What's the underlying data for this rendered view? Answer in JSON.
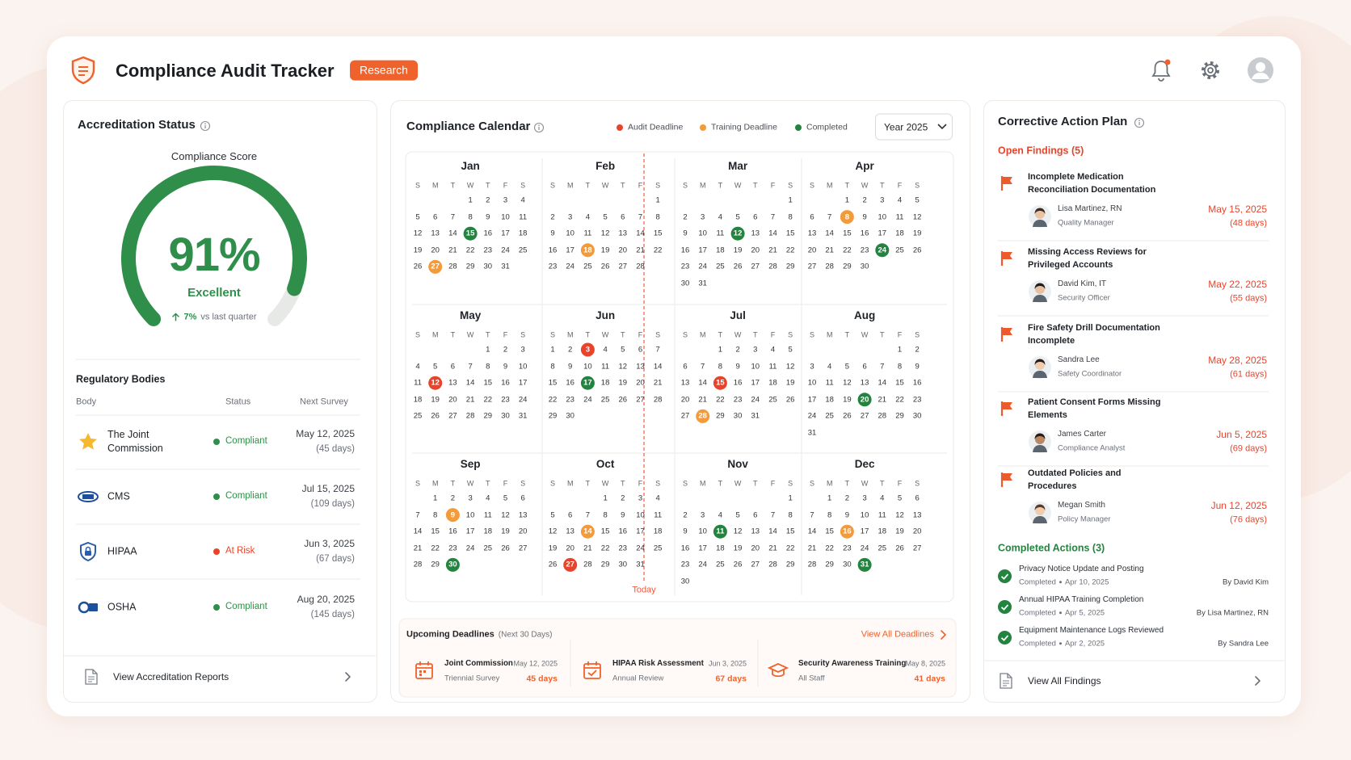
{
  "header": {
    "title": "Compliance Audit Tracker",
    "badge": "Research"
  },
  "accreditation": {
    "title": "Accreditation Status",
    "score_title": "Compliance Score",
    "score": 91,
    "score_label": "91%",
    "range": [
      0,
      100
    ],
    "color": "#2f8f4a",
    "rating": "Excellent",
    "change": "7%",
    "change_note": "vs last quarter",
    "bodies_title": "Regulatory Bodies",
    "columns": [
      "Body",
      "Status",
      "Next Survey"
    ],
    "rows": [
      {
        "name": "The Joint Commission",
        "status": "Compliant",
        "color": "#2f8f4a",
        "date": "May 12, 2025",
        "days": "(45 days)"
      },
      {
        "name": "CMS",
        "status": "Compliant",
        "color": "#2f8f4a",
        "date": "Jul 15, 2025",
        "days": "(109 days)"
      },
      {
        "name": "HIPAA",
        "status": "At Risk",
        "color": "#e8442b",
        "date": "Jun 3, 2025",
        "days": "(67 days)"
      },
      {
        "name": "OSHA",
        "status": "Compliant",
        "color": "#2f8f4a",
        "date": "Aug 20, 2025",
        "days": "(145 days)"
      }
    ],
    "footer": "View Accreditation Reports"
  },
  "calendar": {
    "title": "Compliance Calendar",
    "legend": [
      {
        "label": "Audit Deadline",
        "color": "#e8442b"
      },
      {
        "label": "Training Deadline",
        "color": "#f39a3b"
      },
      {
        "label": "Completed",
        "color": "#23843f"
      }
    ],
    "year_select": "Year 2025",
    "today": "Today",
    "weekdays": [
      "S",
      "M",
      "T",
      "W",
      "T",
      "F",
      "S"
    ],
    "months": [
      {
        "name": "Jan",
        "weeks": [
          [
            null,
            null,
            null,
            1,
            2,
            3,
            4
          ],
          [
            5,
            6,
            7,
            8,
            9,
            10,
            11
          ],
          [
            12,
            13,
            14,
            15,
            16,
            17,
            18
          ],
          [
            19,
            20,
            21,
            22,
            23,
            24,
            25
          ],
          [
            26,
            27,
            28,
            29,
            30,
            31
          ]
        ],
        "marks": [
          {
            "day": 15,
            "kind": "Completed"
          },
          {
            "day": 27,
            "kind": "Training Deadline"
          }
        ]
      },
      {
        "name": "Feb",
        "weeks": [
          [
            null,
            null,
            null,
            null,
            null,
            null,
            1
          ],
          [
            2,
            3,
            4,
            5,
            6,
            7,
            8
          ],
          [
            9,
            10,
            11,
            12,
            13,
            14,
            15
          ],
          [
            16,
            17,
            18,
            19,
            20,
            21,
            22
          ],
          [
            23,
            24,
            25,
            26,
            27,
            28
          ]
        ],
        "marks": [
          {
            "day": 18,
            "kind": "Training Deadline"
          }
        ]
      },
      {
        "name": "Mar",
        "weeks": [
          [
            null,
            null,
            null,
            null,
            null,
            null,
            1
          ],
          [
            2,
            3,
            4,
            5,
            6,
            7,
            8
          ],
          [
            9,
            10,
            11,
            12,
            13,
            14,
            15
          ],
          [
            16,
            17,
            18,
            19,
            20,
            21,
            22
          ],
          [
            23,
            24,
            25,
            26,
            27,
            28,
            29
          ],
          [
            30,
            31
          ]
        ],
        "marks": [
          {
            "day": 12,
            "kind": "Completed"
          }
        ]
      },
      {
        "name": "Apr",
        "weeks": [
          [
            null,
            null,
            1,
            2,
            3,
            4,
            5
          ],
          [
            6,
            7,
            8,
            9,
            10,
            11,
            12
          ],
          [
            13,
            14,
            15,
            16,
            17,
            18,
            19
          ],
          [
            20,
            21,
            22,
            23,
            24,
            25,
            26
          ],
          [
            27,
            28,
            29,
            30
          ]
        ],
        "marks": [
          {
            "day": 8,
            "kind": "Training Deadline"
          },
          {
            "day": 24,
            "kind": "Completed"
          }
        ]
      },
      {
        "name": "May",
        "weeks": [
          [
            null,
            null,
            null,
            null,
            1,
            2,
            3
          ],
          [
            4,
            5,
            6,
            7,
            8,
            9,
            10
          ],
          [
            11,
            12,
            13,
            14,
            15,
            16,
            17
          ],
          [
            18,
            19,
            20,
            21,
            22,
            23,
            24
          ],
          [
            25,
            26,
            27,
            28,
            29,
            30,
            31
          ]
        ],
        "marks": [
          {
            "day": 12,
            "kind": "Audit Deadline"
          }
        ]
      },
      {
        "name": "Jun",
        "weeks": [
          [
            1,
            2,
            3,
            4,
            5,
            6,
            7
          ],
          [
            8,
            9,
            10,
            11,
            12,
            13,
            14
          ],
          [
            15,
            16,
            17,
            18,
            19,
            20,
            21
          ],
          [
            22,
            23,
            24,
            25,
            26,
            27,
            28
          ],
          [
            29,
            30
          ]
        ],
        "marks": [
          {
            "day": 3,
            "kind": "Audit Deadline"
          },
          {
            "day": 17,
            "kind": "Completed"
          }
        ]
      },
      {
        "name": "Jul",
        "weeks": [
          [
            null,
            null,
            1,
            2,
            3,
            4,
            5
          ],
          [
            6,
            7,
            8,
            9,
            10,
            11,
            12
          ],
          [
            13,
            14,
            15,
            16,
            17,
            18,
            19
          ],
          [
            20,
            21,
            22,
            23,
            24,
            25,
            26
          ],
          [
            27,
            28,
            29,
            30,
            31
          ]
        ],
        "marks": [
          {
            "day": 15,
            "kind": "Audit Deadline"
          },
          {
            "day": 28,
            "kind": "Training Deadline"
          }
        ]
      },
      {
        "name": "Aug",
        "weeks": [
          [
            null,
            null,
            null,
            null,
            null,
            1,
            2
          ],
          [
            3,
            4,
            5,
            6,
            7,
            8,
            9
          ],
          [
            10,
            11,
            12,
            13,
            14,
            15,
            16
          ],
          [
            17,
            18,
            19,
            20,
            21,
            22,
            23
          ],
          [
            24,
            25,
            26,
            27,
            28,
            29,
            30
          ],
          [
            31
          ]
        ],
        "marks": [
          {
            "day": 20,
            "kind": "Completed"
          }
        ]
      },
      {
        "name": "Sep",
        "weeks": [
          [
            null,
            1,
            2,
            3,
            4,
            5,
            6
          ],
          [
            7,
            8,
            9,
            10,
            11,
            12,
            13
          ],
          [
            14,
            15,
            16,
            17,
            18,
            19,
            20
          ],
          [
            21,
            22,
            23,
            24,
            25,
            26,
            27
          ],
          [
            28,
            29,
            30
          ]
        ],
        "marks": [
          {
            "day": 9,
            "kind": "Training Deadline"
          },
          {
            "day": 30,
            "kind": "Completed"
          }
        ]
      },
      {
        "name": "Oct",
        "weeks": [
          [
            null,
            null,
            null,
            1,
            2,
            3,
            4
          ],
          [
            5,
            6,
            7,
            8,
            9,
            10,
            11
          ],
          [
            12,
            13,
            14,
            15,
            16,
            17,
            18
          ],
          [
            19,
            20,
            21,
            22,
            23,
            24,
            25
          ],
          [
            26,
            27,
            28,
            29,
            30,
            31
          ]
        ],
        "marks": [
          {
            "day": 14,
            "kind": "Training Deadline"
          },
          {
            "day": 27,
            "kind": "Audit Deadline"
          }
        ]
      },
      {
        "name": "Nov",
        "weeks": [
          [
            null,
            null,
            null,
            null,
            null,
            null,
            1
          ],
          [
            2,
            3,
            4,
            5,
            6,
            7,
            8
          ],
          [
            9,
            10,
            11,
            12,
            13,
            14,
            15
          ],
          [
            16,
            17,
            18,
            19,
            20,
            21,
            22
          ],
          [
            23,
            24,
            25,
            26,
            27,
            28,
            29
          ],
          [
            30
          ]
        ],
        "marks": [
          {
            "day": 11,
            "kind": "Completed"
          }
        ]
      },
      {
        "name": "Dec",
        "weeks": [
          [
            null,
            1,
            2,
            3,
            4,
            5,
            6
          ],
          [
            7,
            8,
            9,
            10,
            11,
            12,
            13
          ],
          [
            14,
            15,
            16,
            17,
            18,
            19,
            20
          ],
          [
            21,
            22,
            23,
            24,
            25,
            26,
            27
          ],
          [
            28,
            29,
            30,
            31
          ]
        ],
        "marks": [
          {
            "day": 16,
            "kind": "Training Deadline"
          },
          {
            "day": 31,
            "kind": "Completed"
          }
        ]
      }
    ]
  },
  "deadlines": {
    "title": "Upcoming Deadlines",
    "note": "(Next 30 Days)",
    "link": "View All Deadlines",
    "items": [
      {
        "title": "Joint Commission",
        "sub": "Triennial Survey",
        "date": "May 12, 2025",
        "days": "45 days"
      },
      {
        "title": "HIPAA Risk Assessment",
        "sub": "Annual Review",
        "date": "Jun 3, 2025",
        "days": "67 days"
      },
      {
        "title": "Security Awareness Training",
        "sub": "All Staff",
        "date": "May 8, 2025",
        "days": "41 days"
      }
    ]
  },
  "corrective": {
    "title": "Corrective Action Plan",
    "open_title": "Open Findings (5)",
    "findings": [
      {
        "title": "Incomplete Medication Reconciliation Documentation",
        "person": "Lisa Martinez, RN",
        "role": "Quality Manager",
        "date": "May 15, 2025",
        "days": "(48 days)"
      },
      {
        "title": "Missing Access Reviews for Privileged Accounts",
        "person": "David Kim, IT",
        "role": "Security Officer",
        "date": "May 22, 2025",
        "days": "(55 days)"
      },
      {
        "title": "Fire Safety Drill Documentation Incomplete",
        "person": "Sandra Lee",
        "role": "Safety Coordinator",
        "date": "May 28, 2025",
        "days": "(61 days)"
      },
      {
        "title": "Patient Consent Forms Missing Elements",
        "person": "James Carter",
        "role": "Compliance Analyst",
        "date": "Jun 5, 2025",
        "days": "(69 days)"
      },
      {
        "title": "Outdated Policies and Procedures",
        "person": "Megan Smith",
        "role": "Policy Manager",
        "date": "Jun 12, 2025",
        "days": "(76 days)"
      }
    ],
    "completed_title": "Completed Actions (3)",
    "completed_label": "Completed",
    "completed": [
      {
        "title": "Privacy Notice Update and Posting",
        "date": "Apr 10, 2025",
        "by": "By David Kim"
      },
      {
        "title": "Annual HIPAA Training Completion",
        "date": "Apr 5, 2025",
        "by": "By Lisa Martinez, RN"
      },
      {
        "title": "Equipment Maintenance Logs Reviewed",
        "date": "Apr 2, 2025",
        "by": "By Sandra Lee"
      }
    ],
    "footer": "View All Findings"
  }
}
